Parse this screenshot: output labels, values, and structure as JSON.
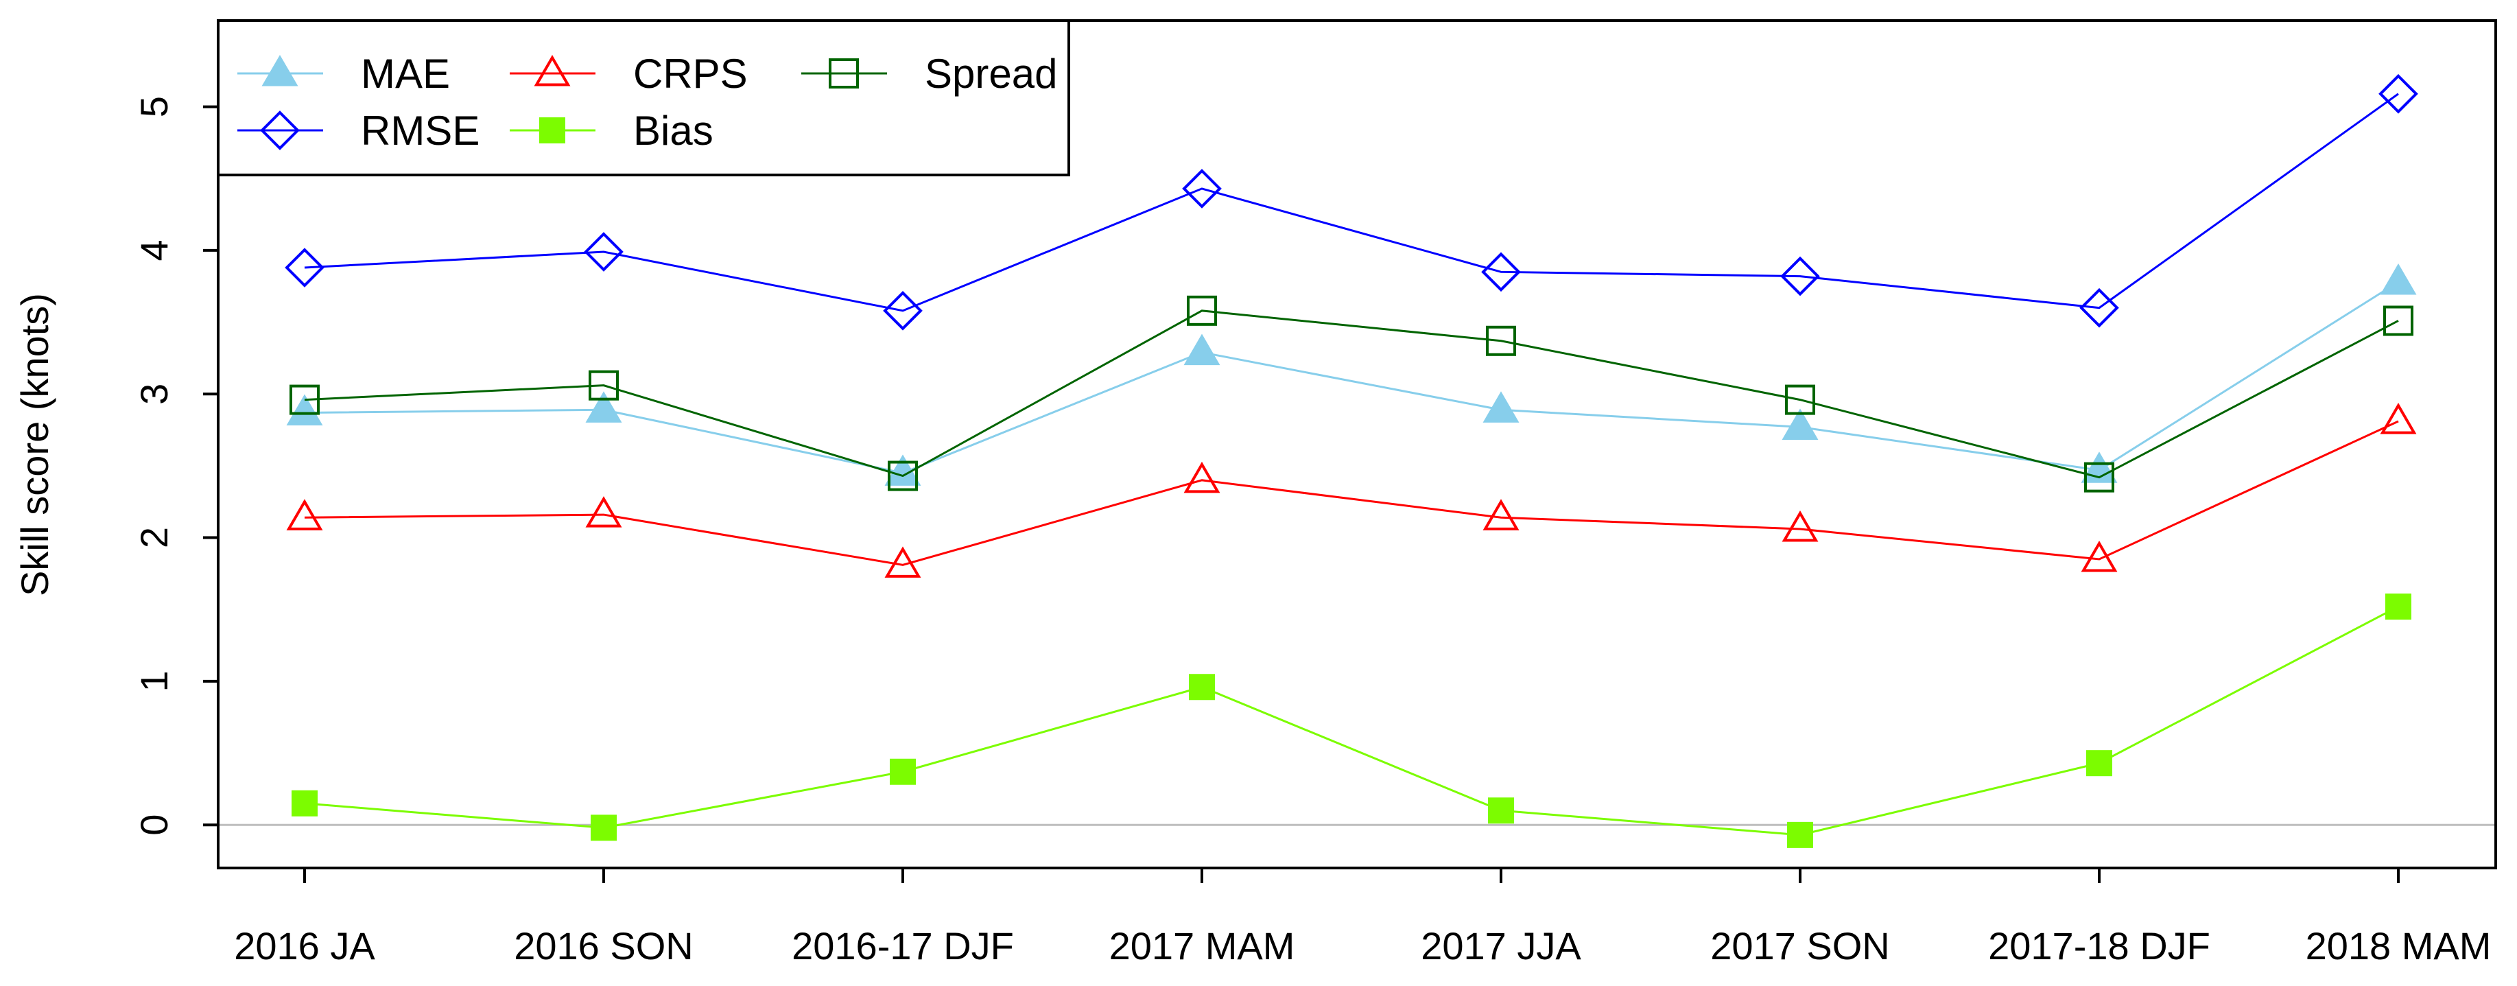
{
  "chart_data": {
    "type": "line",
    "title": "",
    "xlabel": "",
    "ylabel": "Skill score (knots)",
    "categories": [
      "2016 JA",
      "2016 SON",
      "2016-17 DJF",
      "2017 MAM",
      "2017 JJA",
      "2017 SON",
      "2017-18 DJF",
      "2018 MAM"
    ],
    "ylim": [
      -0.3,
      5.6
    ],
    "yticks": [
      0,
      1,
      2,
      3,
      4,
      5
    ],
    "reference_line": 0,
    "grid": false,
    "legend_position": "top-left",
    "series": [
      {
        "name": "MAE",
        "color": "#87ceeb",
        "marker": "filled-triangle",
        "values": [
          2.87,
          2.89,
          2.45,
          3.29,
          2.89,
          2.77,
          2.47,
          3.78
        ]
      },
      {
        "name": "RMSE",
        "color": "#0000ff",
        "marker": "open-diamond",
        "values": [
          3.88,
          3.99,
          3.58,
          4.43,
          3.85,
          3.82,
          3.6,
          5.09
        ]
      },
      {
        "name": "CRPS",
        "color": "#ff0000",
        "marker": "open-triangle",
        "values": [
          2.14,
          2.16,
          1.81,
          2.4,
          2.14,
          2.06,
          1.85,
          2.81
        ]
      },
      {
        "name": "Bias",
        "color": "#7cfc00",
        "marker": "filled-square",
        "values": [
          0.15,
          -0.02,
          0.37,
          0.96,
          0.1,
          -0.07,
          0.43,
          1.52
        ]
      },
      {
        "name": "Spread",
        "color": "#006400",
        "marker": "open-square",
        "values": [
          2.96,
          3.06,
          2.43,
          3.58,
          3.37,
          2.96,
          2.42,
          3.51
        ]
      }
    ],
    "legend_order": [
      "MAE",
      "CRPS",
      "Spread",
      "RMSE",
      "Bias"
    ]
  }
}
